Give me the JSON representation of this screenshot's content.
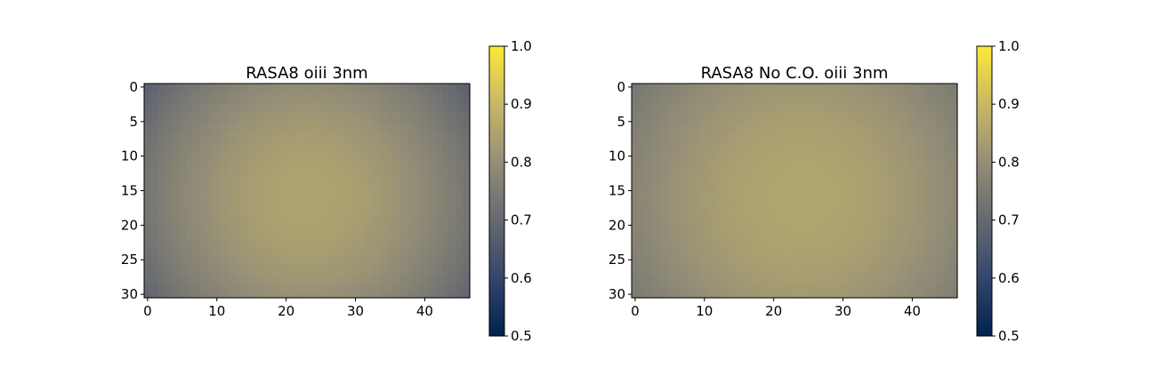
{
  "chart_data": [
    {
      "type": "heatmap",
      "title": "RASA8 oiii 3nm",
      "xlabel": "",
      "ylabel": "",
      "grid": false,
      "x_ticks": [
        "0",
        "10",
        "20",
        "30",
        "40"
      ],
      "y_ticks": [
        "0",
        "5",
        "10",
        "15",
        "20",
        "25",
        "30"
      ],
      "xlim": [
        -0.5,
        46.5
      ],
      "ylim": [
        30.5,
        -0.5
      ],
      "shape": [
        31,
        47
      ],
      "center": [
        23,
        16
      ],
      "center_value": 0.85,
      "corner_value": 0.68,
      "colorbar": {
        "ticks": [
          "0.5",
          "0.6",
          "0.7",
          "0.8",
          "0.9",
          "1.0"
        ],
        "range": [
          0.5,
          1.0
        ],
        "colormap": "cividis"
      }
    },
    {
      "type": "heatmap",
      "title": "RASA8 No C.O. oiii 3nm",
      "xlabel": "",
      "ylabel": "",
      "grid": false,
      "x_ticks": [
        "0",
        "10",
        "20",
        "30",
        "40"
      ],
      "y_ticks": [
        "0",
        "5",
        "10",
        "15",
        "20",
        "25",
        "30"
      ],
      "xlim": [
        -0.5,
        46.5
      ],
      "ylim": [
        30.5,
        -0.5
      ],
      "shape": [
        31,
        47
      ],
      "center": [
        24,
        16
      ],
      "center_value": 0.855,
      "corner_value": 0.74,
      "colorbar": {
        "ticks": [
          "0.5",
          "0.6",
          "0.7",
          "0.8",
          "0.9",
          "1.0"
        ],
        "range": [
          0.5,
          1.0
        ],
        "colormap": "cividis"
      }
    }
  ]
}
